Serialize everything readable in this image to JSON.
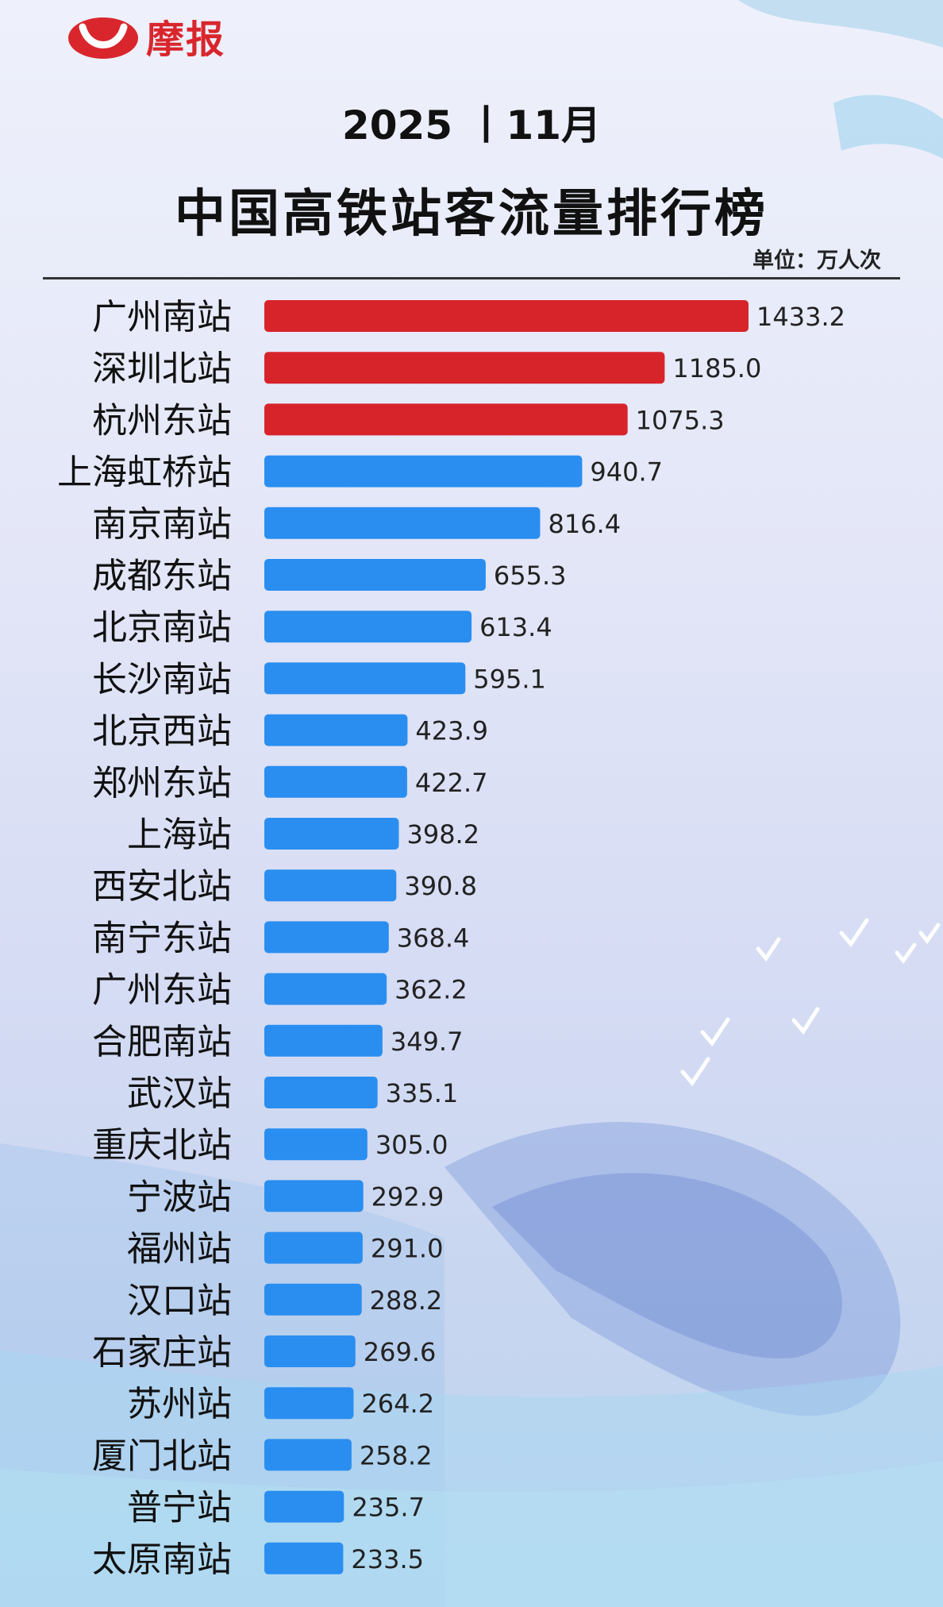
{
  "logo": {
    "text": "摩报"
  },
  "header": {
    "subtitle": "2025 丨11月",
    "title": "中国高铁站客流量排行榜",
    "unit": "单位：万人次"
  },
  "colors": {
    "top3": "#d7242b",
    "rest": "#2a8ef0",
    "logo": "#d9262d"
  },
  "chart_data": {
    "type": "bar",
    "orientation": "horizontal",
    "categories": [
      "广州南站",
      "深圳北站",
      "杭州东站",
      "上海虹桥站",
      "南京南站",
      "成都东站",
      "北京南站",
      "长沙南站",
      "北京西站",
      "郑州东站",
      "上海站",
      "西安北站",
      "南宁东站",
      "广州东站",
      "合肥南站",
      "武汉站",
      "重庆北站",
      "宁波站",
      "福州站",
      "汉口站",
      "石家庄站",
      "苏州站",
      "厦门北站",
      "普宁站",
      "太原南站"
    ],
    "values": [
      1433.2,
      1185.0,
      1075.3,
      940.7,
      816.4,
      655.3,
      613.4,
      595.1,
      423.9,
      422.7,
      398.2,
      390.8,
      368.4,
      362.2,
      349.7,
      335.1,
      305.0,
      292.9,
      291.0,
      288.2,
      269.6,
      264.2,
      258.2,
      235.7,
      233.5
    ],
    "value_labels": [
      "1433.2",
      "1185.0",
      "1075.3",
      "940.7",
      "816.4",
      "655.3",
      "613.4",
      "595.1",
      "423.9",
      "422.7",
      "398.2",
      "390.8",
      "368.4",
      "362.2",
      "349.7",
      "335.1",
      "305.0",
      "292.9",
      "291.0",
      "288.2",
      "269.6",
      "264.2",
      "258.2",
      "235.7",
      "233.5"
    ],
    "highlight_top": 3,
    "xlim": [
      0,
      1433.2
    ],
    "grid": false,
    "legend": "none"
  }
}
